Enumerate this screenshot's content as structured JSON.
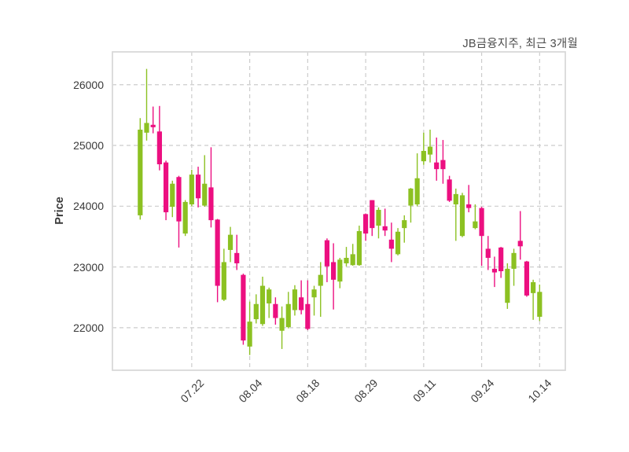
{
  "header": {
    "title": "JB금융지주, 최근 3개월"
  },
  "chart_data": {
    "type": "candlestick",
    "title": "JB금융지주, 최근 3개월",
    "xlabel": "",
    "ylabel": "Price",
    "y_ticks": [
      22000,
      23000,
      24000,
      25000,
      26000
    ],
    "ylim": [
      21300,
      26540
    ],
    "grid": "dashed-both-axes",
    "legend": "none",
    "x_tick_indices": [
      8,
      17,
      26,
      35,
      44,
      53,
      62
    ],
    "x_tick_labels": [
      "07.22",
      "08.04",
      "08.18",
      "08.29",
      "09.11",
      "09.24",
      "10.14"
    ],
    "colors": {
      "up": "#8CC122",
      "down": "#EC0F80",
      "grid": "#cccccc",
      "border": "#d9d9d9",
      "tick_text": "#3a3a3a",
      "title_text": "#4d4d4d",
      "background": "#ffffff"
    },
    "ohlc_order": [
      "open",
      "high",
      "low",
      "close"
    ],
    "candles": [
      [
        23850,
        25450,
        23780,
        25260
      ],
      [
        25210,
        26260,
        25080,
        25370
      ],
      [
        25340,
        25640,
        25200,
        25300
      ],
      [
        25230,
        25650,
        24590,
        24690
      ],
      [
        24720,
        24750,
        23770,
        23900
      ],
      [
        23990,
        24420,
        23820,
        24370
      ],
      [
        24480,
        24500,
        23320,
        23750
      ],
      [
        23550,
        24100,
        23510,
        24070
      ],
      [
        24030,
        24600,
        24000,
        24520
      ],
      [
        24520,
        24650,
        23980,
        24130
      ],
      [
        24010,
        24840,
        23990,
        24370
      ],
      [
        24310,
        24970,
        23650,
        23770
      ],
      [
        23780,
        23790,
        22420,
        22690
      ],
      [
        22460,
        23300,
        22440,
        23080
      ],
      [
        23280,
        23660,
        23080,
        23530
      ],
      [
        23230,
        23530,
        22950,
        23060
      ],
      [
        22870,
        22890,
        21720,
        21790
      ],
      [
        21690,
        22430,
        21550,
        22100
      ],
      [
        22140,
        22550,
        22070,
        22390
      ],
      [
        22060,
        22840,
        22030,
        22690
      ],
      [
        22400,
        22660,
        22160,
        22630
      ],
      [
        22390,
        22500,
        22050,
        22160
      ],
      [
        21950,
        22350,
        21650,
        22160
      ],
      [
        22010,
        22590,
        21990,
        22390
      ],
      [
        22290,
        22700,
        22200,
        22630
      ],
      [
        22500,
        22780,
        22220,
        22290
      ],
      [
        22390,
        22780,
        21960,
        21980
      ],
      [
        22500,
        22690,
        22200,
        22630
      ],
      [
        22690,
        23080,
        22180,
        22870
      ],
      [
        23440,
        23470,
        22750,
        23010
      ],
      [
        23080,
        23390,
        22300,
        22790
      ],
      [
        22760,
        23150,
        22650,
        23120
      ],
      [
        23060,
        23330,
        23010,
        23150
      ],
      [
        23030,
        23380,
        23020,
        23210
      ],
      [
        23030,
        23680,
        23020,
        23590
      ],
      [
        23870,
        23880,
        23430,
        23550
      ],
      [
        24100,
        24100,
        23510,
        23640
      ],
      [
        23680,
        23980,
        23470,
        23940
      ],
      [
        23670,
        23960,
        23510,
        23600
      ],
      [
        23450,
        23730,
        23080,
        23300
      ],
      [
        23210,
        23640,
        23190,
        23580
      ],
      [
        23640,
        23850,
        23400,
        23770
      ],
      [
        24010,
        24300,
        23730,
        24290
      ],
      [
        24030,
        24870,
        24000,
        24460
      ],
      [
        24740,
        25210,
        24680,
        24910
      ],
      [
        24850,
        25260,
        24720,
        24980
      ],
      [
        24720,
        25130,
        24420,
        24610
      ],
      [
        24760,
        25090,
        24370,
        24610
      ],
      [
        24440,
        24500,
        24070,
        24090
      ],
      [
        24030,
        24290,
        23430,
        24200
      ],
      [
        23510,
        24220,
        23490,
        24180
      ],
      [
        24030,
        24350,
        23900,
        23970
      ],
      [
        23640,
        24030,
        23620,
        23750
      ],
      [
        23970,
        23990,
        23020,
        23510
      ],
      [
        23300,
        23510,
        22950,
        23150
      ],
      [
        22970,
        23170,
        22670,
        22910
      ],
      [
        23320,
        23330,
        22820,
        22930
      ],
      [
        22410,
        23060,
        22310,
        22970
      ],
      [
        22970,
        23300,
        22690,
        23230
      ],
      [
        23430,
        23920,
        23120,
        23340
      ],
      [
        23090,
        23100,
        22510,
        22530
      ],
      [
        22570,
        22790,
        22130,
        22750
      ],
      [
        22180,
        22710,
        22110,
        22590
      ]
    ]
  }
}
